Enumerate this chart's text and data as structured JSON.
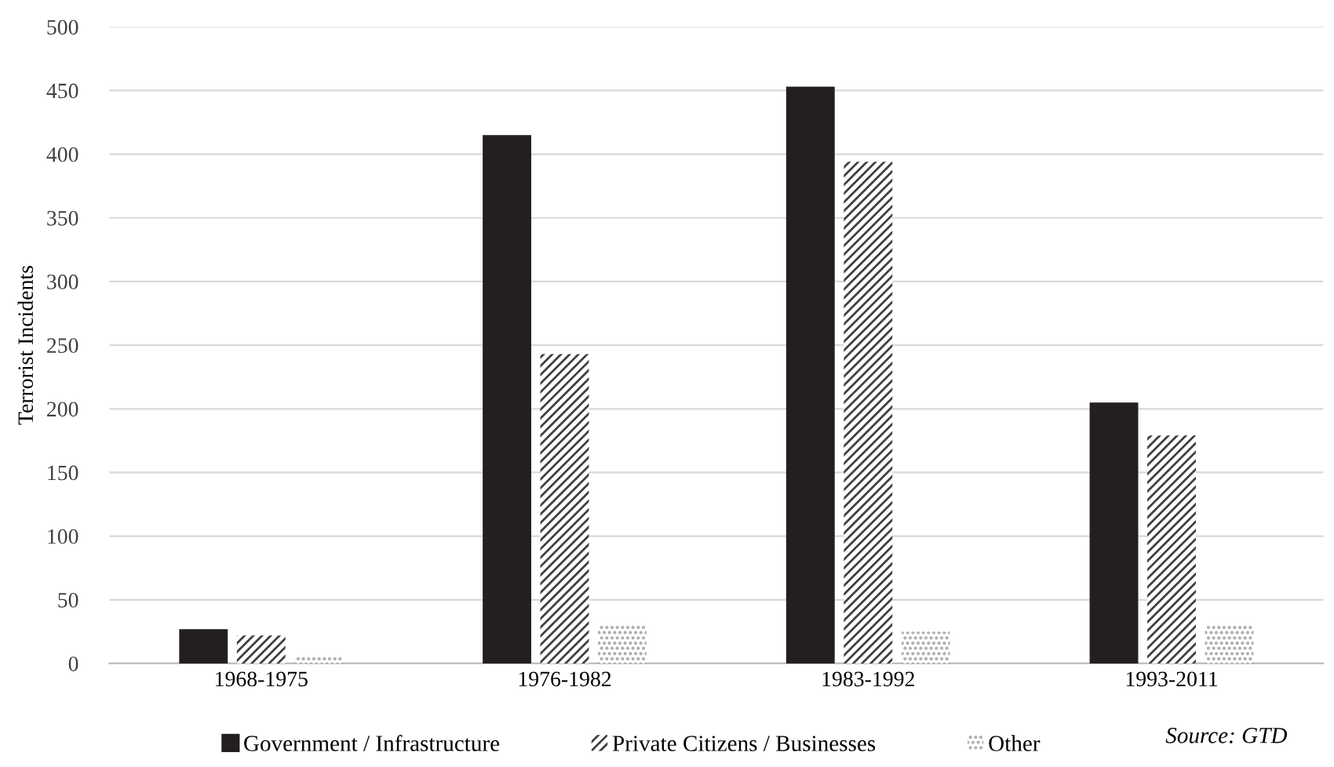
{
  "chart_data": {
    "type": "bar",
    "ylabel": "Terrorist Incidents",
    "categories": [
      "1968-1975",
      "1976-1982",
      "1983-1992",
      "1993-2011"
    ],
    "series": [
      {
        "name": "Government / Infrastructure",
        "color": "#231f20",
        "values": [
          27,
          415,
          453,
          205
        ]
      },
      {
        "name": "Private Citizens / Businesses",
        "color": "#404040",
        "values": [
          22,
          243,
          394,
          179
        ]
      },
      {
        "name": "Other",
        "color": "#a6a6a6",
        "values": [
          5,
          31,
          25,
          30
        ]
      }
    ],
    "ylim": [
      0,
      500
    ],
    "yticks": [
      0,
      50,
      100,
      150,
      200,
      250,
      300,
      350,
      400,
      450,
      500
    ],
    "grid": "y",
    "legend": "bottom",
    "annotations": [
      "Source: GTD"
    ]
  }
}
